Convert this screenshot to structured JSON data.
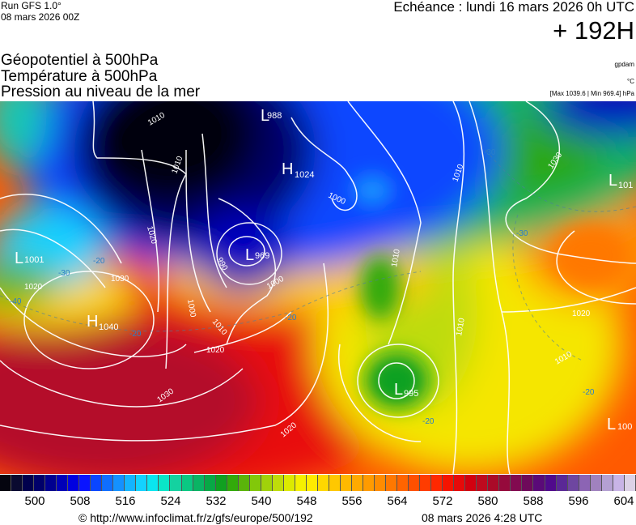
{
  "header": {
    "run": "Run GFS 1.0°",
    "run_date": "08 mars 2026 00Z",
    "echeance": "Echéance : lundi 16 mars 2026 0h UTC",
    "lead_time": "+ 192H",
    "layers": [
      "Géopotentiel à 500hPa",
      "Température à 500hPa",
      "Pression au niveau de la mer"
    ],
    "units": [
      "gpdam",
      "°C",
      "[Max 1039.6 | Min 969.4] hPa"
    ]
  },
  "map": {
    "pressure_centers": [
      {
        "type": "L",
        "value": "988"
      },
      {
        "type": "H",
        "value": "1024"
      },
      {
        "type": "L",
        "value": "969"
      },
      {
        "type": "L",
        "value": "1001"
      },
      {
        "type": "H",
        "value": "1040"
      },
      {
        "type": "L",
        "value": "995"
      },
      {
        "type": "L",
        "value": "101"
      },
      {
        "type": "L",
        "value": "100"
      }
    ],
    "isobar_labels": [
      "1010",
      "1010",
      "1000",
      "1020",
      "990",
      "1000",
      "1030",
      "1020",
      "1010",
      "1000",
      "1010",
      "1030",
      "1020",
      "1030",
      "1020",
      "1010",
      "1010",
      "1020",
      "1010"
    ],
    "isotherm_labels": [
      "-40",
      "-20",
      "-30",
      "-20",
      "-20",
      "-30",
      "-30",
      "-20",
      "-20"
    ]
  },
  "legend": {
    "colors": [
      "#05050f",
      "#0a0a30",
      "#00004d",
      "#00006a",
      "#000090",
      "#0000b8",
      "#0000e0",
      "#0a14ff",
      "#0a46ff",
      "#0f6eff",
      "#1491ff",
      "#14b4ff",
      "#14d2ff",
      "#0ae6f0",
      "#0ae6c8",
      "#14d2a0",
      "#0ac882",
      "#0ab464",
      "#08a846",
      "#10a020",
      "#32aa0a",
      "#5ab40a",
      "#82c80a",
      "#a0d20a",
      "#bedc0a",
      "#dcea00",
      "#f5f000",
      "#ffeb00",
      "#ffd700",
      "#ffc800",
      "#ffb900",
      "#ffaa00",
      "#ff9b00",
      "#ff8c00",
      "#ff7800",
      "#ff6400",
      "#ff5000",
      "#ff3c00",
      "#ff2800",
      "#f51400",
      "#e60a0a",
      "#d2000f",
      "#be0a1e",
      "#aa0a28",
      "#960a3c",
      "#820a50",
      "#6e0a5a",
      "#5a0a78",
      "#500a8c",
      "#5a2896",
      "#6e46a0",
      "#8c64b4",
      "#a082be",
      "#b4a0d2",
      "#c8b4e6",
      "#dcd2e6"
    ],
    "ticks": [
      "500",
      "508",
      "516",
      "524",
      "532",
      "540",
      "548",
      "556",
      "564",
      "572",
      "580",
      "588",
      "596",
      "604"
    ]
  },
  "footer": {
    "url": "© http://www.infoclimat.fr/z/gfs/europe/500/192",
    "generated": "08 mars 2026  4:28 UTC"
  }
}
